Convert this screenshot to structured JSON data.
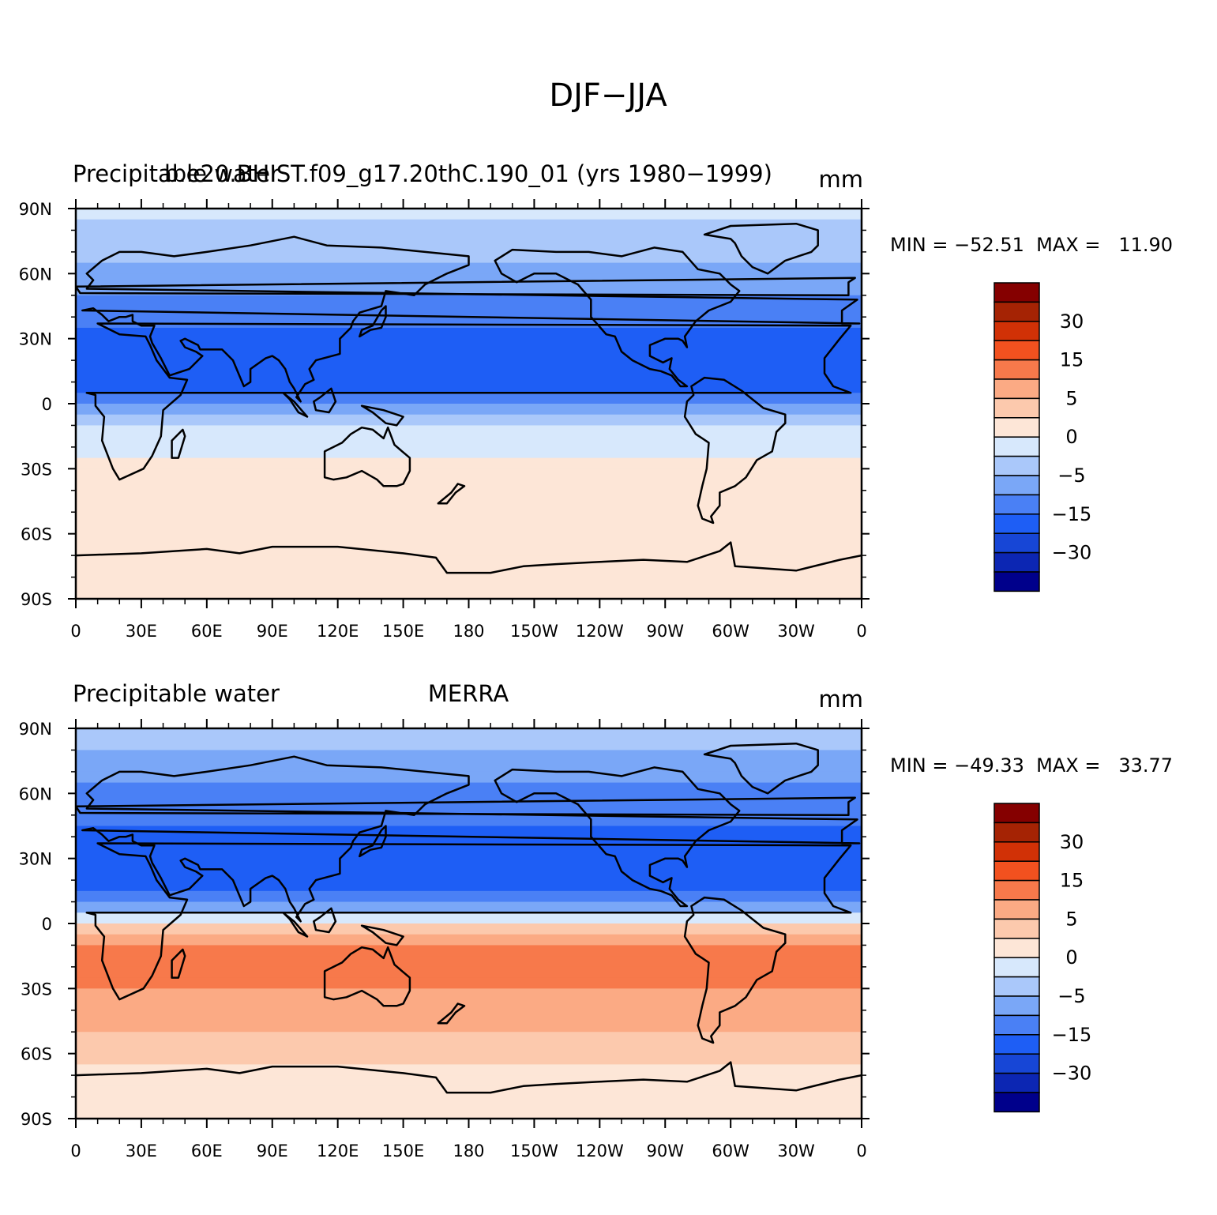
{
  "figure_title": "DJF−JJA",
  "colors": {
    "levels": [
      "#00008b",
      "#0c26b3",
      "#1746d6",
      "#1e5ef5",
      "#4a80f5",
      "#7aa7f7",
      "#aac8fa",
      "#d7e8fc",
      "#fde6d7",
      "#fcc9ad",
      "#fbaa84",
      "#f7794b",
      "#f2511f",
      "#d13106",
      "#a52304",
      "#850000"
    ],
    "contour_labels": [
      "−30",
      "−15",
      "−5",
      "0",
      "5",
      "15",
      "30"
    ],
    "land_outline": "#000000"
  },
  "axes": {
    "lat_labels": [
      "90N",
      "60N",
      "30N",
      "0",
      "30S",
      "60S",
      "90S"
    ],
    "lon_labels": [
      "0",
      "30E",
      "60E",
      "90E",
      "120E",
      "150E",
      "180",
      "150W",
      "120W",
      "90W",
      "60W",
      "30W",
      "0"
    ]
  },
  "panels": [
    {
      "left_title": "Precipitable water",
      "center_title": "b.e20.BHIST.f09_g17.20thC.190_01 (yrs 1980−1999)",
      "units": "mm",
      "stats": "MIN = −52.51  MAX =   11.90",
      "chart_data": {
        "type": "heatmap",
        "title": "b.e20.BHIST.f09_g17.20thC.190_01 (yrs 1980-1999)",
        "variable": "Precipitable water",
        "units": "mm",
        "xlim": [
          0,
          360
        ],
        "ylim": [
          -90,
          90
        ],
        "min": -52.51,
        "max": 11.9,
        "zonal_profile": [
          {
            "lat": 90,
            "value": -4
          },
          {
            "lat": 75,
            "value": -7
          },
          {
            "lat": 60,
            "value": -12
          },
          {
            "lat": 45,
            "value": -16
          },
          {
            "lat": 30,
            "value": -22
          },
          {
            "lat": 15,
            "value": -30
          },
          {
            "lat": 5,
            "value": -20
          },
          {
            "lat": 0,
            "value": -12
          },
          {
            "lat": -10,
            "value": -6
          },
          {
            "lat": -20,
            "value": -1
          },
          {
            "lat": -30,
            "value": 1
          },
          {
            "lat": -45,
            "value": 0.5
          },
          {
            "lat": -60,
            "value": 0.5
          },
          {
            "lat": -75,
            "value": 0.5
          },
          {
            "lat": -90,
            "value": 0.5
          }
        ]
      }
    },
    {
      "left_title": "Precipitable water",
      "center_title": "MERRA",
      "units": "mm",
      "stats": "MIN = −49.33  MAX =   33.77",
      "chart_data": {
        "type": "heatmap",
        "title": "MERRA",
        "variable": "Precipitable water",
        "units": "mm",
        "xlim": [
          0,
          360
        ],
        "ylim": [
          -90,
          90
        ],
        "min": -49.33,
        "max": 33.77,
        "zonal_profile": [
          {
            "lat": 90,
            "value": -8
          },
          {
            "lat": 75,
            "value": -12
          },
          {
            "lat": 60,
            "value": -16
          },
          {
            "lat": 45,
            "value": -20
          },
          {
            "lat": 30,
            "value": -24
          },
          {
            "lat": 15,
            "value": -20
          },
          {
            "lat": 5,
            "value": -8
          },
          {
            "lat": 0,
            "value": 1
          },
          {
            "lat": -10,
            "value": 10
          },
          {
            "lat": -20,
            "value": 14
          },
          {
            "lat": -30,
            "value": 10
          },
          {
            "lat": -45,
            "value": 6
          },
          {
            "lat": -60,
            "value": 3
          },
          {
            "lat": -75,
            "value": 1
          },
          {
            "lat": -90,
            "value": 1
          }
        ]
      }
    }
  ]
}
